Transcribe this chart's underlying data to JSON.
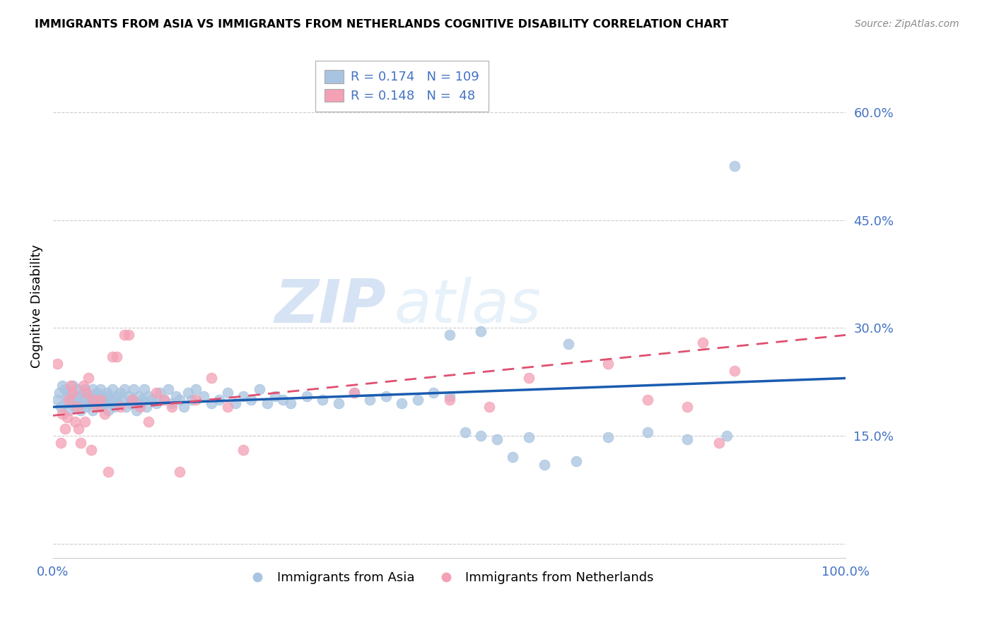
{
  "title": "IMMIGRANTS FROM ASIA VS IMMIGRANTS FROM NETHERLANDS COGNITIVE DISABILITY CORRELATION CHART",
  "source": "Source: ZipAtlas.com",
  "ylabel": "Cognitive Disability",
  "xlim": [
    0.0,
    1.0
  ],
  "ylim": [
    -0.02,
    0.68
  ],
  "yticks": [
    0.0,
    0.15,
    0.3,
    0.45,
    0.6
  ],
  "ytick_labels": [
    "",
    "15.0%",
    "30.0%",
    "45.0%",
    "60.0%"
  ],
  "xticks": [
    0.0,
    0.25,
    0.5,
    0.75,
    1.0
  ],
  "xtick_labels": [
    "0.0%",
    "",
    "",
    "",
    "100.0%"
  ],
  "legend_blue_r": "0.174",
  "legend_blue_n": "109",
  "legend_pink_r": "0.148",
  "legend_pink_n": " 48",
  "blue_color": "#a8c4e0",
  "pink_color": "#f4a0b5",
  "blue_line_color": "#1a5cb0",
  "pink_line_color": "#e05070",
  "axis_color": "#4472c4",
  "watermark_zip": "ZIP",
  "watermark_atlas": "atlas",
  "asia_x": [
    0.005,
    0.008,
    0.01,
    0.012,
    0.015,
    0.015,
    0.018,
    0.02,
    0.02,
    0.022,
    0.025,
    0.025,
    0.028,
    0.03,
    0.03,
    0.032,
    0.035,
    0.035,
    0.038,
    0.04,
    0.04,
    0.042,
    0.045,
    0.045,
    0.048,
    0.05,
    0.05,
    0.052,
    0.055,
    0.055,
    0.058,
    0.06,
    0.06,
    0.062,
    0.065,
    0.065,
    0.068,
    0.07,
    0.07,
    0.072,
    0.075,
    0.075,
    0.078,
    0.08,
    0.082,
    0.085,
    0.088,
    0.09,
    0.092,
    0.095,
    0.098,
    0.1,
    0.102,
    0.105,
    0.108,
    0.11,
    0.112,
    0.115,
    0.118,
    0.12,
    0.125,
    0.13,
    0.135,
    0.14,
    0.145,
    0.15,
    0.155,
    0.16,
    0.165,
    0.17,
    0.175,
    0.18,
    0.19,
    0.2,
    0.21,
    0.22,
    0.23,
    0.24,
    0.25,
    0.26,
    0.27,
    0.28,
    0.29,
    0.3,
    0.32,
    0.34,
    0.36,
    0.38,
    0.4,
    0.42,
    0.44,
    0.46,
    0.48,
    0.5,
    0.52,
    0.54,
    0.56,
    0.6,
    0.65,
    0.7,
    0.75,
    0.8,
    0.85,
    0.86,
    0.5,
    0.54,
    0.58,
    0.62,
    0.66
  ],
  "asia_y": [
    0.2,
    0.21,
    0.19,
    0.22,
    0.195,
    0.215,
    0.205,
    0.185,
    0.21,
    0.195,
    0.2,
    0.22,
    0.19,
    0.205,
    0.215,
    0.195,
    0.2,
    0.185,
    0.21,
    0.2,
    0.215,
    0.19,
    0.205,
    0.195,
    0.2,
    0.215,
    0.185,
    0.205,
    0.195,
    0.21,
    0.2,
    0.19,
    0.215,
    0.205,
    0.195,
    0.2,
    0.21,
    0.185,
    0.205,
    0.195,
    0.2,
    0.215,
    0.19,
    0.205,
    0.195,
    0.21,
    0.2,
    0.215,
    0.19,
    0.205,
    0.195,
    0.2,
    0.215,
    0.185,
    0.205,
    0.195,
    0.2,
    0.215,
    0.19,
    0.205,
    0.2,
    0.195,
    0.21,
    0.2,
    0.215,
    0.195,
    0.205,
    0.2,
    0.19,
    0.21,
    0.2,
    0.215,
    0.205,
    0.195,
    0.2,
    0.21,
    0.195,
    0.205,
    0.2,
    0.215,
    0.195,
    0.205,
    0.2,
    0.195,
    0.205,
    0.2,
    0.195,
    0.21,
    0.2,
    0.205,
    0.195,
    0.2,
    0.21,
    0.205,
    0.155,
    0.15,
    0.145,
    0.148,
    0.278,
    0.148,
    0.155,
    0.145,
    0.15,
    0.525,
    0.29,
    0.295,
    0.12,
    0.11,
    0.115
  ],
  "netherlands_x": [
    0.005,
    0.01,
    0.012,
    0.015,
    0.018,
    0.02,
    0.022,
    0.025,
    0.028,
    0.03,
    0.032,
    0.035,
    0.038,
    0.04,
    0.042,
    0.045,
    0.048,
    0.05,
    0.055,
    0.06,
    0.065,
    0.07,
    0.075,
    0.08,
    0.085,
    0.09,
    0.095,
    0.1,
    0.11,
    0.12,
    0.13,
    0.14,
    0.15,
    0.16,
    0.18,
    0.2,
    0.22,
    0.24,
    0.38,
    0.5,
    0.55,
    0.6,
    0.7,
    0.75,
    0.8,
    0.82,
    0.84,
    0.86
  ],
  "netherlands_y": [
    0.25,
    0.14,
    0.18,
    0.16,
    0.175,
    0.2,
    0.22,
    0.21,
    0.17,
    0.19,
    0.16,
    0.14,
    0.22,
    0.17,
    0.21,
    0.23,
    0.13,
    0.2,
    0.19,
    0.2,
    0.18,
    0.1,
    0.26,
    0.26,
    0.19,
    0.29,
    0.29,
    0.2,
    0.19,
    0.17,
    0.21,
    0.2,
    0.19,
    0.1,
    0.2,
    0.23,
    0.19,
    0.13,
    0.21,
    0.2,
    0.19,
    0.23,
    0.25,
    0.2,
    0.19,
    0.28,
    0.14,
    0.24
  ]
}
